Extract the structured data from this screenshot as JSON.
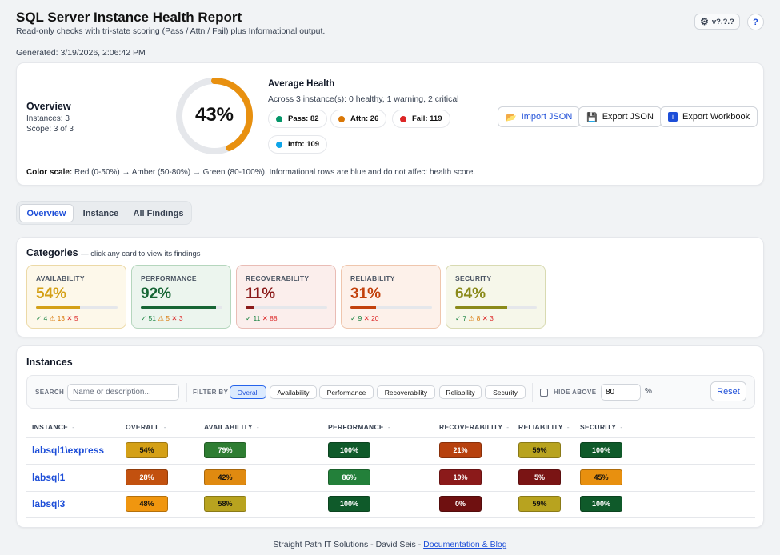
{
  "header": {
    "title": "SQL Server Instance Health Report",
    "subtitle": "Read-only checks with tri-state scoring (Pass / Attn / Fail) plus Informational output.",
    "generated": "Generated: 3/19/2026, 2:06:42 PM",
    "version": "v?.?.?",
    "help": "?"
  },
  "overview": {
    "title": "Overview",
    "instances": "Instances: 3",
    "scope": "Scope: 3 of 3",
    "gauge_pct": "43%",
    "gauge_value": 43,
    "avg_title": "Average Health",
    "avg_sub": "Across 3 instance(s): 0 healthy, 1 warning, 2 critical",
    "pills": [
      {
        "label": "Pass: 82",
        "color": "#059669"
      },
      {
        "label": "Attn: 26",
        "color": "#d97706"
      },
      {
        "label": "Fail: 119",
        "color": "#dc2626"
      },
      {
        "label": "Info: 109",
        "color": "#0ea5e9"
      }
    ],
    "buttons": {
      "import": "Import JSON",
      "export": "Export JSON",
      "workbook": "Export Workbook"
    },
    "scale_label": "Color scale:",
    "scale_text": "Red (0-50%) → Amber (50-80%) → Green (80-100%). Informational rows are blue and do not affect health score."
  },
  "tabs": [
    "Overview",
    "Instance",
    "All Findings"
  ],
  "categories": {
    "title": "Categories",
    "hint": "— click any card to view its findings",
    "items": [
      {
        "name": "AVAILABILITY",
        "pct": "54%",
        "value": 54,
        "pass": "✓ 4",
        "warn": "⚠ 13",
        "fail": "✕ 5",
        "color": "#d4a017",
        "bg": "#fdf8ea",
        "border": "#ecd9a6"
      },
      {
        "name": "PERFORMANCE",
        "pct": "92%",
        "value": 92,
        "pass": "✓ 51",
        "warn": "⚠ 5",
        "fail": "✕ 3",
        "color": "#166534",
        "bg": "#ecf5ee",
        "border": "#b5d6bd"
      },
      {
        "name": "RECOVERABILITY",
        "pct": "11%",
        "value": 11,
        "pass": "✓ 11",
        "warn": "",
        "fail": "✕ 88",
        "color": "#8b1a1a",
        "bg": "#fbeeec",
        "border": "#e9bcb5"
      },
      {
        "name": "RELIABILITY",
        "pct": "31%",
        "value": 31,
        "pass": "✓ 9",
        "warn": "",
        "fail": "✕ 20",
        "color": "#c2410c",
        "bg": "#fdf1ea",
        "border": "#efc6ad"
      },
      {
        "name": "SECURITY",
        "pct": "64%",
        "value": 64,
        "pass": "✓ 7",
        "warn": "⚠ 8",
        "fail": "✕ 3",
        "color": "#8a8a1a",
        "bg": "#f6f7ea",
        "border": "#d8dab1"
      }
    ]
  },
  "instances": {
    "title": "Instances",
    "search_label": "SEARCH",
    "search_placeholder": "Name or description...",
    "filter_label": "FILTER BY",
    "filters": [
      "Overall",
      "Availability",
      "Performance",
      "Recoverability",
      "Reliability",
      "Security"
    ],
    "hide_label": "HIDE ABOVE",
    "hide_value": "80",
    "pct_sign": "%",
    "reset": "Reset",
    "sort_glyph": "-",
    "columns": [
      "INSTANCE",
      "OVERALL",
      "AVAILABILITY",
      "PERFORMANCE",
      "RECOVERABILITY",
      "RELIABILITY",
      "SECURITY"
    ],
    "rows": [
      {
        "name": "labsql1\\express",
        "cells": [
          {
            "v": "54%",
            "bg": "#d4a017",
            "fg": "#111"
          },
          {
            "v": "79%",
            "bg": "#2e7d32",
            "fg": "#fff"
          },
          {
            "v": "100%",
            "bg": "#0f5a2a",
            "fg": "#fff"
          },
          {
            "v": "21%",
            "bg": "#b7410e",
            "fg": "#fff"
          },
          {
            "v": "59%",
            "bg": "#b8a31f",
            "fg": "#111"
          },
          {
            "v": "100%",
            "bg": "#0f5a2a",
            "fg": "#fff"
          }
        ]
      },
      {
        "name": "labsql1",
        "cells": [
          {
            "v": "28%",
            "bg": "#c2510f",
            "fg": "#fff"
          },
          {
            "v": "42%",
            "bg": "#e08a10",
            "fg": "#111"
          },
          {
            "v": "86%",
            "bg": "#23803a",
            "fg": "#fff"
          },
          {
            "v": "10%",
            "bg": "#8b1a1a",
            "fg": "#fff"
          },
          {
            "v": "5%",
            "bg": "#7a1414",
            "fg": "#fff"
          },
          {
            "v": "45%",
            "bg": "#e8900f",
            "fg": "#111"
          }
        ]
      },
      {
        "name": "labsql3",
        "cells": [
          {
            "v": "48%",
            "bg": "#f0960f",
            "fg": "#111"
          },
          {
            "v": "58%",
            "bg": "#b8a31f",
            "fg": "#111"
          },
          {
            "v": "100%",
            "bg": "#0f5a2a",
            "fg": "#fff"
          },
          {
            "v": "0%",
            "bg": "#6f1010",
            "fg": "#fff"
          },
          {
            "v": "59%",
            "bg": "#b8a31f",
            "fg": "#111"
          },
          {
            "v": "100%",
            "bg": "#0f5a2a",
            "fg": "#fff"
          }
        ]
      }
    ]
  },
  "footer": {
    "text": "Straight Path IT Solutions - David Seis - ",
    "link": "Documentation & Blog"
  }
}
